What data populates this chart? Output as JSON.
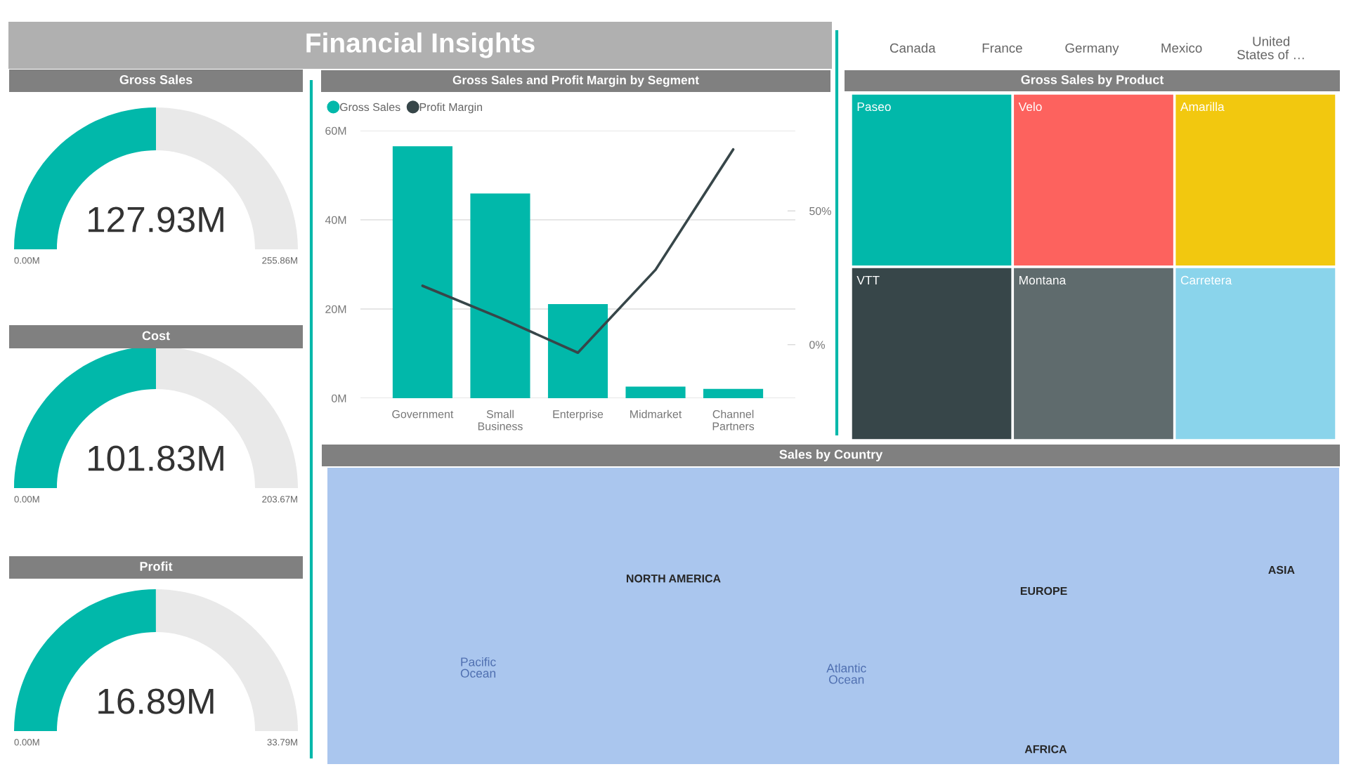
{
  "chart_data": [
    {
      "type": "other",
      "title": "Financial Insights"
    },
    {
      "type": "donut",
      "title": "Gross Sales",
      "categories": [
        null,
        null
      ],
      "values": [
        127.93,
        127.93
      ],
      "value_labels": [
        "127.93M",
        null
      ],
      "colors": [
        "#01b8aa",
        "#e9e9e9"
      ],
      "annotations": [
        "0.00M",
        "255.86M"
      ]
    },
    {
      "type": "donut",
      "title": "Cost",
      "categories": [
        null,
        null
      ],
      "values": [
        101.83,
        101.84
      ],
      "value_labels": [
        "101.83M",
        null
      ],
      "colors": [
        "#01b8aa",
        "#e9e9e9"
      ],
      "annotations": [
        "0.00M",
        "203.67M"
      ]
    },
    {
      "type": "donut",
      "title": "Profit",
      "categories": [
        null,
        null
      ],
      "values": [
        16.89,
        16.9
      ],
      "value_labels": [
        "16.89M",
        null
      ],
      "colors": [
        "#01b8aa",
        "#e9e9e9"
      ],
      "annotations": [
        "0.00M",
        "33.79M"
      ]
    },
    {
      "type": "bar",
      "title": "Gross Sales and Profit Margin by Segment",
      "categories": [
        "Government",
        "Small Business",
        "Enterprise",
        "Midmarket",
        "Channel Partners"
      ],
      "series": [
        {
          "name": "Gross Sales",
          "color": "#01b8aa",
          "values": [
            56.5,
            45.9,
            21.1,
            2.6,
            2.1
          ]
        },
        {
          "name": "Profit Margin",
          "type": "line",
          "axis": "y2",
          "color": "#374649",
          "values": [
            22,
            10,
            -3,
            28,
            73
          ]
        }
      ],
      "ylim": [
        0,
        60
      ],
      "yticks": [
        {
          "value": 0,
          "label": "0M"
        },
        {
          "value": 20,
          "label": "20M"
        },
        {
          "value": 40,
          "label": "40M"
        },
        {
          "value": 60,
          "label": "60M"
        }
      ],
      "y2lim": [
        -20,
        80
      ],
      "y2ticks": [
        {
          "value": 0,
          "label": "0%"
        },
        {
          "value": 50,
          "label": "50%"
        }
      ],
      "grid": "y",
      "legend": "top left"
    },
    {
      "type": "other",
      "categories": [
        "Canada",
        "France",
        "Germany",
        "Mexico",
        "United States of …"
      ]
    },
    {
      "type": "other",
      "title": "Gross Sales by Product",
      "categories": [
        "Paseo",
        "Velo",
        "Amarilla",
        "VTT",
        "Montana",
        "Carretera"
      ],
      "colors": [
        "#01b8aa",
        "#fd625e",
        "#f2c80f",
        "#374649",
        "#5f6b6d",
        "#8ad4eb"
      ]
    },
    {
      "type": "other",
      "title": "Sales by Country",
      "annotations": [
        "NORTH AMERICA",
        "EUROPE",
        "ASIA",
        "Pacific Ocean",
        "Atlantic Ocean",
        "AFRICA"
      ]
    }
  ]
}
